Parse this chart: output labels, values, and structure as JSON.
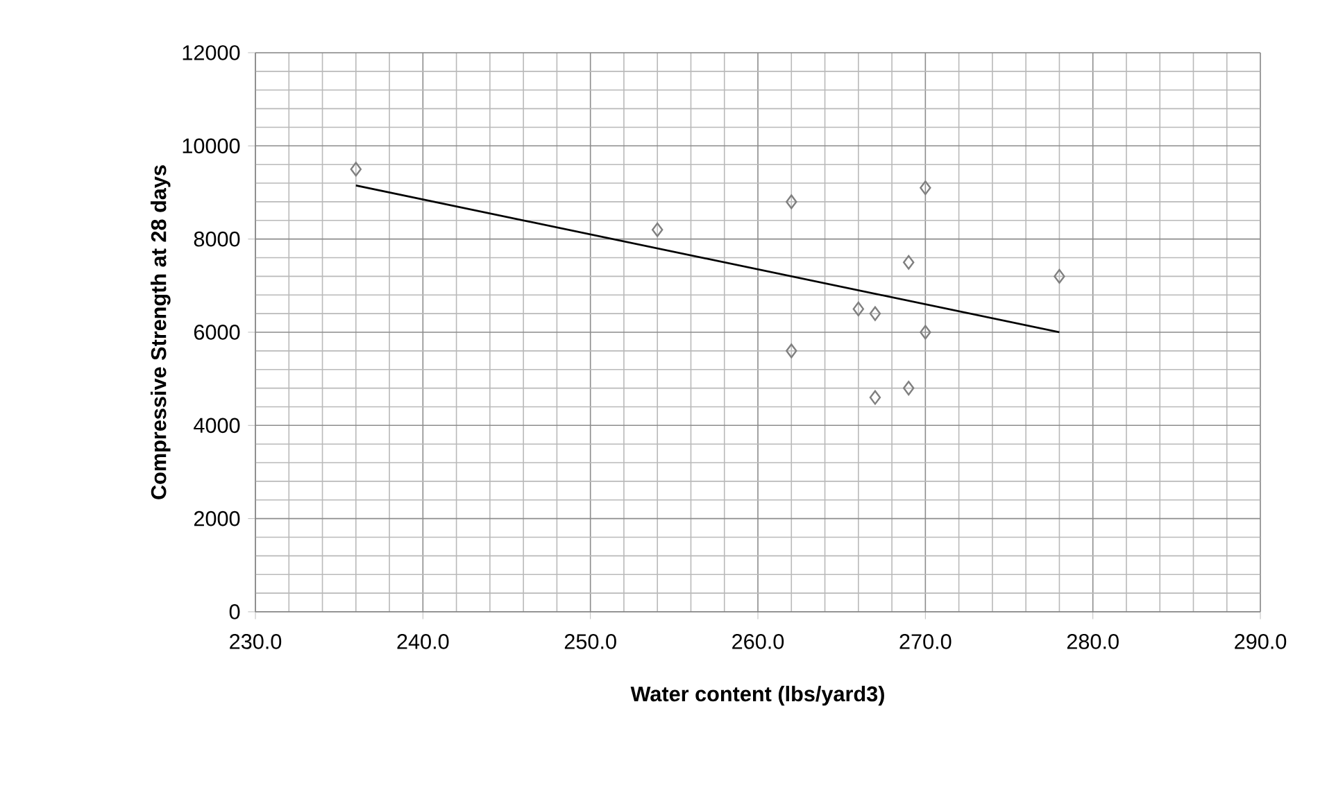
{
  "chart_data": {
    "type": "scatter",
    "xlabel": "Water content (lbs/yard3)",
    "ylabel": "Compressive Strength at 28 days",
    "xlim": [
      230,
      290
    ],
    "ylim": [
      0,
      12000
    ],
    "xticks": [
      {
        "value": 230,
        "label": "230.0"
      },
      {
        "value": 240,
        "label": "240.0"
      },
      {
        "value": 250,
        "label": "250.0"
      },
      {
        "value": 260,
        "label": "260.0"
      },
      {
        "value": 270,
        "label": "270.0"
      },
      {
        "value": 280,
        "label": "280.0"
      },
      {
        "value": 290,
        "label": "290.0"
      }
    ],
    "yticks": [
      0,
      2000,
      4000,
      6000,
      8000,
      10000,
      12000
    ],
    "grid": true,
    "series": [
      {
        "color": "#7f7f7f",
        "marker": "diamond",
        "x": [
          236,
          254,
          262,
          262,
          266,
          267,
          267,
          269,
          269,
          270,
          270,
          278
        ],
        "values": [
          9500,
          8200,
          8800,
          5600,
          6500,
          6400,
          4600,
          7500,
          4800,
          9100,
          6000,
          7200
        ]
      },
      {
        "type": "line",
        "color": "#000000",
        "marker": "none",
        "line_style": "solid",
        "x": [
          236,
          278
        ],
        "values": [
          9150,
          6000
        ]
      }
    ]
  }
}
